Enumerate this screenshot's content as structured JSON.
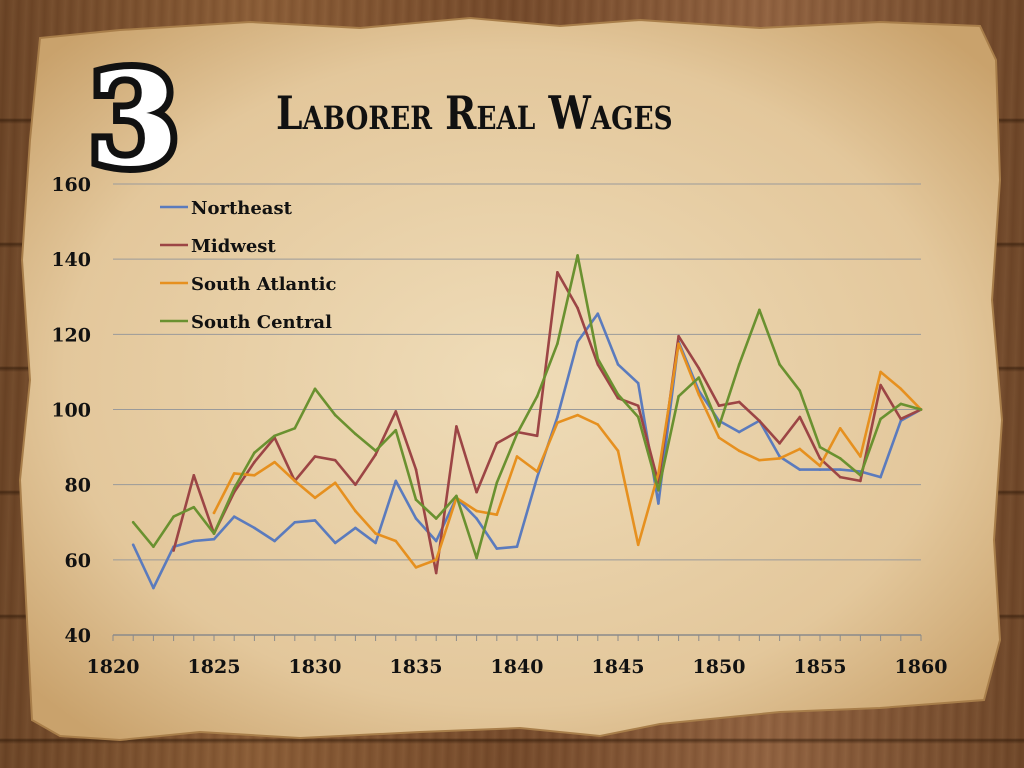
{
  "slide": {
    "badge_number": "3",
    "title": "Laborer Real Wages"
  },
  "colors": {
    "paper": "#e8d2ab",
    "wood": "#7a5030",
    "grid": "#9a9a9a",
    "text": "#111111"
  },
  "chart_data": {
    "type": "line",
    "title": "",
    "xlabel": "",
    "ylabel": "",
    "xlim": [
      1820,
      1860
    ],
    "ylim": [
      40,
      160
    ],
    "xticks": [
      "1820",
      "1825",
      "1830",
      "1835",
      "1840",
      "1845",
      "1850",
      "1855",
      "1860"
    ],
    "yticks": [
      "40",
      "60",
      "80",
      "100",
      "120",
      "140",
      "160"
    ],
    "grid": "horizontal",
    "legend": "top-left",
    "series": [
      {
        "name": "Northeast",
        "color": "#5b7bbd",
        "x": [
          1821,
          1822,
          1823,
          1824,
          1825,
          1826,
          1827,
          1828,
          1829,
          1830,
          1831,
          1832,
          1833,
          1834,
          1835,
          1836,
          1837,
          1838,
          1839,
          1840,
          1841,
          1842,
          1843,
          1844,
          1845,
          1846,
          1847,
          1848,
          1849,
          1850,
          1851,
          1852,
          1853,
          1854,
          1855,
          1856,
          1857,
          1858,
          1859,
          1860
        ],
        "values": [
          64,
          52.5,
          63.5,
          65,
          65.5,
          71.5,
          68.5,
          65,
          70,
          70.5,
          64.5,
          68.5,
          64.5,
          81,
          71,
          65,
          76.5,
          71,
          63,
          63.5,
          82,
          98,
          118,
          125.5,
          112,
          107,
          75,
          118,
          105,
          97,
          94,
          97,
          87.5,
          84,
          84,
          84,
          83.5,
          82,
          97,
          100
        ]
      },
      {
        "name": "Midwest",
        "color": "#9c4545",
        "x": [
          1823,
          1824,
          1825,
          1826,
          1827,
          1828,
          1829,
          1830,
          1831,
          1832,
          1833,
          1834,
          1835,
          1836,
          1837,
          1838,
          1839,
          1840,
          1841,
          1842,
          1843,
          1844,
          1845,
          1846,
          1847,
          1848,
          1849,
          1850,
          1851,
          1852,
          1853,
          1854,
          1855,
          1856,
          1857,
          1858,
          1859,
          1860
        ],
        "values": [
          62.5,
          82.5,
          67,
          78,
          86,
          92.5,
          81,
          87.5,
          86.5,
          80,
          88,
          99.5,
          84,
          56.5,
          95.5,
          78,
          91,
          94,
          93,
          136.5,
          127,
          112,
          103,
          101,
          80.5,
          119.5,
          111,
          101,
          102,
          97,
          91,
          98,
          87,
          82,
          81,
          106.5,
          97.5,
          100
        ]
      },
      {
        "name": "South Atlantic",
        "color": "#e6901f",
        "x": [
          1825,
          1826,
          1827,
          1828,
          1829,
          1830,
          1831,
          1832,
          1833,
          1834,
          1835,
          1836,
          1837,
          1838,
          1839,
          1840,
          1841,
          1842,
          1843,
          1844,
          1845,
          1846,
          1847,
          1848,
          1849,
          1850,
          1851,
          1852,
          1853,
          1854,
          1855,
          1856,
          1857,
          1858,
          1859,
          1860
        ],
        "values": [
          72.5,
          83,
          82.5,
          86,
          81,
          76.5,
          80.5,
          73,
          67,
          65,
          58,
          60,
          76.5,
          73,
          72,
          87.5,
          83.5,
          96.5,
          98.5,
          96,
          89,
          64,
          83,
          117.5,
          104,
          92.5,
          89,
          86.5,
          87,
          89.5,
          85,
          95,
          87.5,
          110,
          105.5,
          100
        ]
      },
      {
        "name": "South Central",
        "color": "#6a9130",
        "x": [
          1821,
          1822,
          1823,
          1824,
          1825,
          1826,
          1827,
          1828,
          1829,
          1830,
          1831,
          1832,
          1833,
          1834,
          1835,
          1836,
          1837,
          1838,
          1839,
          1840,
          1841,
          1842,
          1843,
          1844,
          1845,
          1846,
          1847,
          1848,
          1849,
          1850,
          1851,
          1852,
          1853,
          1854,
          1855,
          1856,
          1857,
          1858,
          1859,
          1860
        ],
        "values": [
          70,
          63.5,
          71.5,
          74,
          67,
          79,
          88.5,
          93,
          95,
          105.5,
          98.5,
          93.5,
          89,
          94.5,
          76,
          71,
          77,
          60.5,
          80.5,
          93.5,
          103.5,
          117.5,
          141,
          113.5,
          104,
          98,
          78.5,
          103.5,
          108.5,
          95.5,
          112,
          126.5,
          112,
          105,
          90,
          87,
          82.5,
          97.5,
          101.5,
          100
        ]
      }
    ]
  }
}
